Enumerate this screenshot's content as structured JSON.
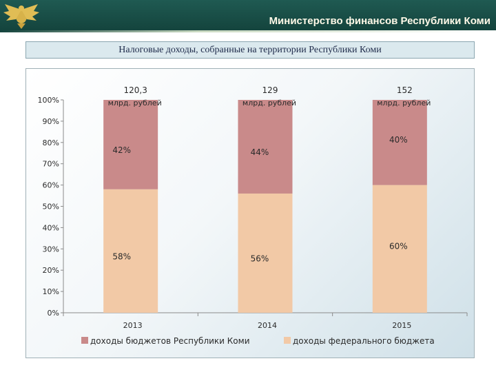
{
  "header": {
    "ministry_title": "Министерство финансов Республики Коми",
    "emblem_icon": "komi-coat-of-arms-icon",
    "colors": {
      "header_bg": "#1f5a52",
      "header_text": "#fff9e8"
    }
  },
  "chart_title": "Налоговые доходы, собранные на территории Республики Коми",
  "chart_data": {
    "type": "bar",
    "stacked": true,
    "percent_scale": true,
    "categories": [
      "2013",
      "2014",
      "2015"
    ],
    "series": [
      {
        "name": "доходы федерального бюджета",
        "values": [
          58,
          56,
          60
        ],
        "labels": [
          "58%",
          "56%",
          "60%"
        ],
        "color": "#f2c9a6"
      },
      {
        "name": "доходы бюджетов Республики Коми",
        "values": [
          42,
          44,
          40
        ],
        "labels": [
          "42%",
          "44%",
          "40%"
        ],
        "color": "#c98a8a"
      }
    ],
    "totals": [
      {
        "value": "120,3",
        "unit": "млрд. рублей"
      },
      {
        "value": "129",
        "unit": "млрд. рублей"
      },
      {
        "value": "152",
        "unit": "млрд. рублей"
      }
    ],
    "y_ticks": [
      "0%",
      "10%",
      "20%",
      "30%",
      "40%",
      "50%",
      "60%",
      "70%",
      "80%",
      "90%",
      "100%"
    ],
    "ylim": [
      0,
      100
    ],
    "grid": false,
    "legend_position": "bottom",
    "legend": [
      "доходы бюджетов Республики Коми",
      "доходы федерального бюджета"
    ]
  }
}
